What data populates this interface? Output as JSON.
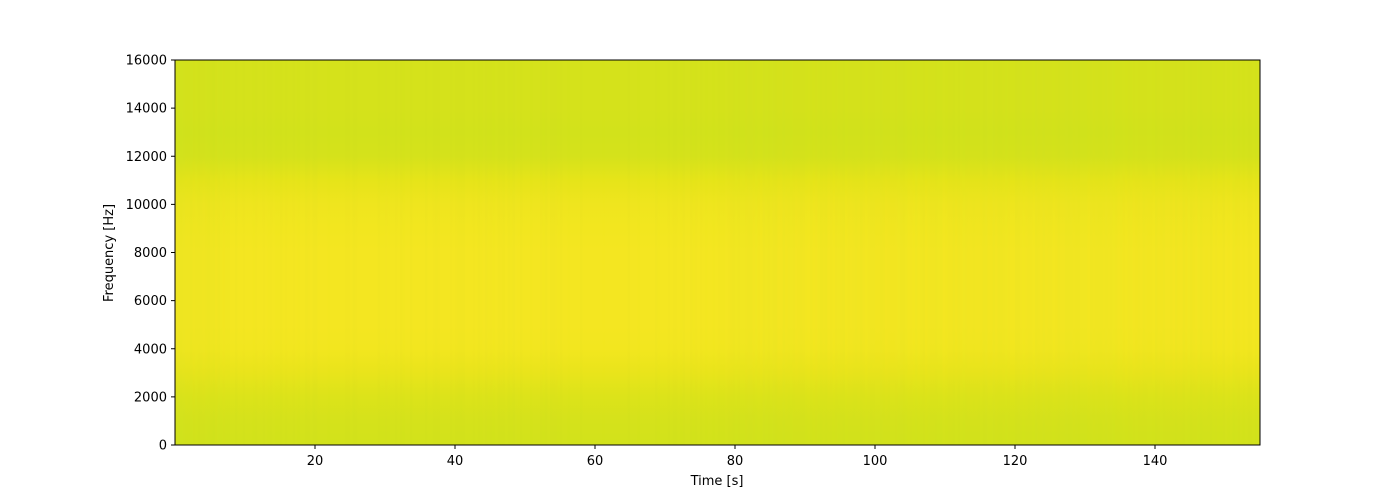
{
  "chart_data": {
    "type": "heatmap",
    "title": "",
    "xlabel": "Time [s]",
    "ylabel": "Frequency [Hz]",
    "xlim": [
      0,
      155
    ],
    "ylim": [
      0,
      16000
    ],
    "xticks": [
      20,
      40,
      60,
      80,
      100,
      120,
      140
    ],
    "yticks": [
      0,
      2000,
      4000,
      6000,
      8000,
      10000,
      12000,
      14000,
      16000
    ],
    "grid": false,
    "colormap": "viridis",
    "value_range": [
      0,
      1
    ],
    "frequency_bands": [
      {
        "freq": 0,
        "level": 0.93
      },
      {
        "freq": 1000,
        "level": 0.935
      },
      {
        "freq": 2000,
        "level": 0.945
      },
      {
        "freq": 3000,
        "level": 0.965
      },
      {
        "freq": 4000,
        "level": 0.98
      },
      {
        "freq": 5000,
        "level": 0.985
      },
      {
        "freq": 6000,
        "level": 0.985
      },
      {
        "freq": 7000,
        "level": 0.985
      },
      {
        "freq": 8000,
        "level": 0.985
      },
      {
        "freq": 9000,
        "level": 0.98
      },
      {
        "freq": 10000,
        "level": 0.975
      },
      {
        "freq": 11000,
        "level": 0.96
      },
      {
        "freq": 12000,
        "level": 0.935
      },
      {
        "freq": 13000,
        "level": 0.93
      },
      {
        "freq": 14000,
        "level": 0.935
      },
      {
        "freq": 15000,
        "level": 0.935
      },
      {
        "freq": 16000,
        "level": 0.935
      }
    ],
    "time_variation": [
      {
        "t": 0,
        "offset": -0.02
      },
      {
        "t": 5,
        "offset": -0.02
      },
      {
        "t": 8,
        "offset": 0.0
      },
      {
        "t": 30,
        "offset": 0.0
      },
      {
        "t": 78,
        "offset": 0.0
      },
      {
        "t": 80,
        "offset": -0.01
      },
      {
        "t": 90,
        "offset": -0.008
      },
      {
        "t": 100,
        "offset": -0.01
      },
      {
        "t": 110,
        "offset": -0.008
      },
      {
        "t": 130,
        "offset": -0.01
      },
      {
        "t": 155,
        "offset": -0.005
      }
    ]
  }
}
